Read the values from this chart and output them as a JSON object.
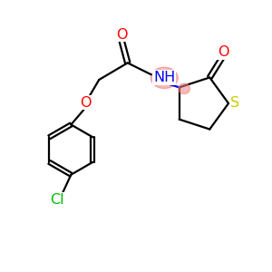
{
  "background_color": "#ffffff",
  "bond_color": "#000000",
  "atom_colors": {
    "O": "#ff0000",
    "N": "#0000ee",
    "S": "#cccc00",
    "Cl": "#00bb00",
    "C": "#000000"
  },
  "highlight_color": "#f08080",
  "highlight_alpha": 0.55,
  "figsize": [
    3.0,
    3.0
  ],
  "dpi": 100,
  "lw": 1.6,
  "fontsize": 11.5
}
